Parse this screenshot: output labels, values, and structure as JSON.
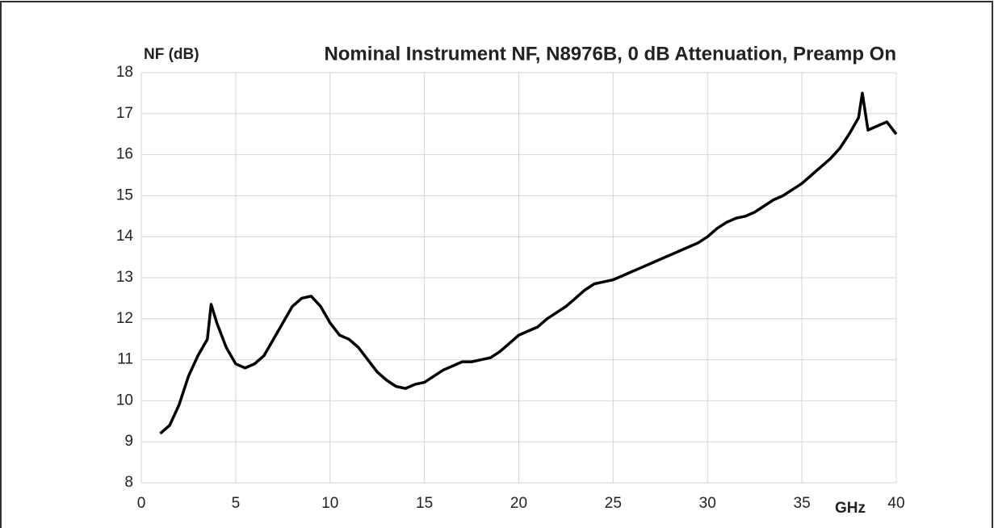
{
  "chart_data": {
    "type": "line",
    "title": "Nominal Instrument NF, N8976B, 0 dB Attenuation, Preamp On",
    "y_label": "NF (dB)",
    "x_label": "GHz",
    "x": [
      1,
      1.5,
      2,
      2.5,
      3,
      3.5,
      3.7,
      4,
      4.5,
      5,
      5.5,
      6,
      6.5,
      7,
      7.5,
      8,
      8.5,
      9,
      9.5,
      10,
      10.5,
      11,
      11.5,
      12,
      12.5,
      13,
      13.5,
      14,
      14.5,
      15,
      15.5,
      16,
      16.5,
      17,
      17.5,
      18,
      18.5,
      19,
      19.5,
      20,
      20.5,
      21,
      21.5,
      22,
      22.5,
      23,
      23.5,
      24,
      24.5,
      25,
      25.5,
      26,
      26.5,
      27,
      27.5,
      28,
      28.5,
      29,
      29.5,
      30,
      30.5,
      31,
      31.5,
      32,
      32.5,
      33,
      33.5,
      34,
      34.5,
      35,
      35.5,
      36,
      36.5,
      37,
      37.5,
      38,
      38.2,
      38.5,
      39,
      39.5,
      40
    ],
    "series": [
      {
        "name": "NF",
        "color": "#000000",
        "values": [
          9.2,
          9.4,
          9.9,
          10.6,
          11.1,
          11.5,
          12.35,
          11.9,
          11.3,
          10.9,
          10.8,
          10.9,
          11.1,
          11.5,
          11.9,
          12.3,
          12.5,
          12.55,
          12.3,
          11.9,
          11.6,
          11.5,
          11.3,
          11.0,
          10.7,
          10.5,
          10.35,
          10.3,
          10.4,
          10.45,
          10.6,
          10.75,
          10.85,
          10.95,
          10.95,
          11.0,
          11.05,
          11.2,
          11.4,
          11.6,
          11.7,
          11.8,
          12.0,
          12.15,
          12.3,
          12.5,
          12.7,
          12.85,
          12.9,
          12.95,
          13.05,
          13.15,
          13.25,
          13.35,
          13.45,
          13.55,
          13.65,
          13.75,
          13.85,
          14.0,
          14.2,
          14.35,
          14.45,
          14.5,
          14.6,
          14.75,
          14.9,
          15.0,
          15.15,
          15.3,
          15.5,
          15.7,
          15.9,
          16.15,
          16.5,
          16.9,
          17.5,
          16.6,
          16.7,
          16.8,
          16.5
        ]
      }
    ],
    "xlim": [
      0,
      40
    ],
    "xticks": [
      0,
      5,
      10,
      15,
      20,
      25,
      30,
      35,
      40
    ],
    "ylim": [
      8,
      18
    ],
    "yticks": [
      8,
      9,
      10,
      11,
      12,
      13,
      14,
      15,
      16,
      17,
      18
    ],
    "grid": true
  }
}
